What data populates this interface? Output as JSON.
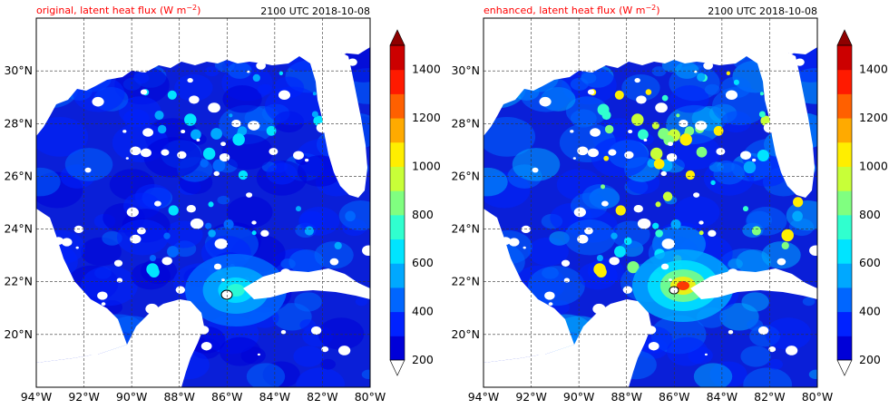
{
  "panels": [
    {
      "id": "left",
      "title_main": "original, latent heat flux (W m",
      "title_sup": "−2",
      "title_close": ")",
      "timestamp": "2100 UTC 2018-10-08",
      "intensity": "original"
    },
    {
      "id": "right",
      "title_main": "enhanced, latent heat flux (W m",
      "title_sup": "−2",
      "title_close": ")",
      "timestamp": "2100 UTC 2018-10-08",
      "intensity": "enhanced"
    }
  ],
  "axes": {
    "x_ticks": [
      "94°W",
      "92°W",
      "90°W",
      "88°W",
      "86°W",
      "84°W",
      "82°W",
      "80°W"
    ],
    "y_ticks": [
      "30°N",
      "28°N",
      "26°N",
      "24°N",
      "22°N",
      "20°N"
    ],
    "lon_range": [
      -94,
      -80
    ],
    "lat_range": [
      18,
      32
    ],
    "grid": true
  },
  "colorbar": {
    "ticks": [
      "1400",
      "1200",
      "1000",
      "800",
      "600",
      "400",
      "200"
    ],
    "range": [
      200,
      1500
    ],
    "colors": [
      "#00008f",
      "#0000d8",
      "#0022ff",
      "#0066ff",
      "#00a8ff",
      "#00e4ff",
      "#30ffcf",
      "#80ff80",
      "#c8ff38",
      "#ffee00",
      "#ffaa00",
      "#ff6000",
      "#ff1a00",
      "#cc0000",
      "#8f0000"
    ],
    "under_color": "#ffffff",
    "over_color": "#8f0000"
  },
  "colors": {
    "ocean_base": "#0a1fd8",
    "land": "#ffffff",
    "title_red": "#ff0000",
    "grid": "#333333"
  }
}
